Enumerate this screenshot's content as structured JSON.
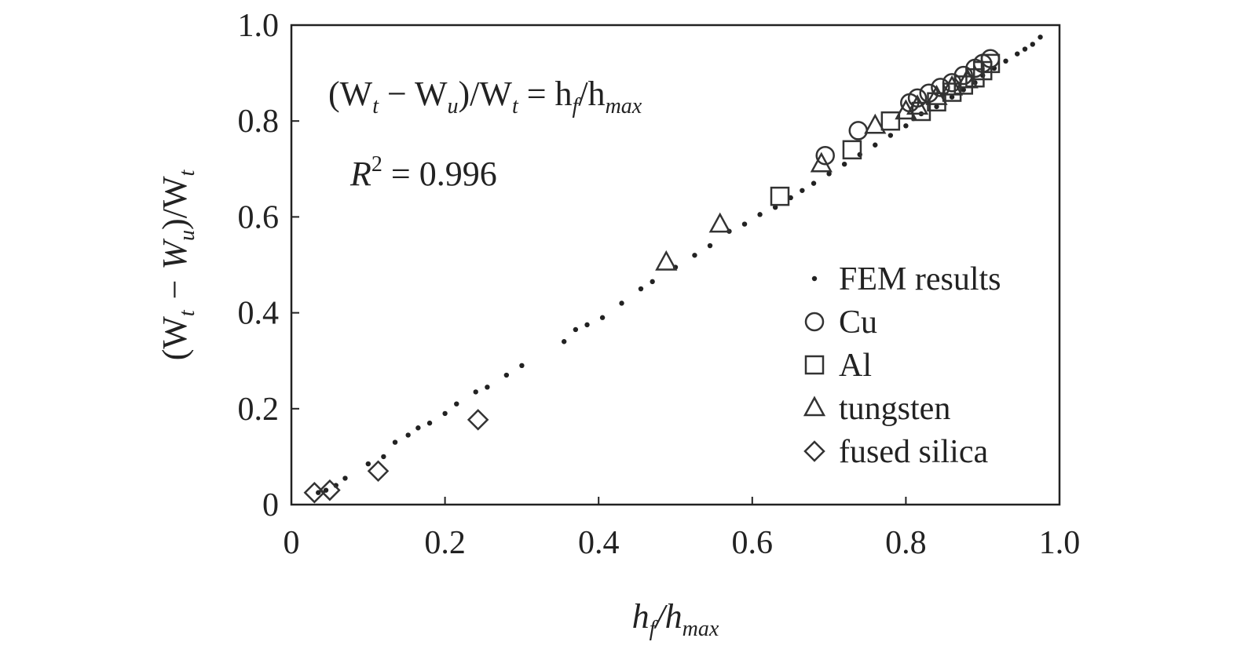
{
  "chart_data": {
    "type": "scatter",
    "xlim": [
      0,
      1.0
    ],
    "ylim": [
      0,
      1.0
    ],
    "x_ticks": [
      "0",
      "0.2",
      "0.4",
      "0.6",
      "0.8",
      "1.0"
    ],
    "y_ticks": [
      "0",
      "0.2",
      "0.4",
      "0.6",
      "0.8",
      "1.0"
    ],
    "xlabel": {
      "main": "h",
      "sub1": "f",
      "mid": "/h",
      "sub2": "max"
    },
    "ylabel": {
      "p1": "(W",
      "s1": "t",
      "p2": " − W",
      "s2": "u",
      "p3": ")/W",
      "s3": "t"
    },
    "equation": {
      "p1": "(W",
      "s1": "t",
      "p2": " − W",
      "s2": "u",
      "p3": ")/W",
      "s3": "t",
      "p4": " = h",
      "s4": "f",
      "p5": "/h",
      "s5": "max"
    },
    "r_squared": {
      "label": "R",
      "sup": "2",
      "value": " = 0.996"
    },
    "grid": false,
    "legend_position": "right",
    "series": [
      {
        "name": "FEM results",
        "marker": "dot",
        "points": [
          [
            0.035,
            0.025
          ],
          [
            0.045,
            0.03
          ],
          [
            0.058,
            0.04
          ],
          [
            0.07,
            0.055
          ],
          [
            0.1,
            0.085
          ],
          [
            0.12,
            0.1
          ],
          [
            0.135,
            0.13
          ],
          [
            0.152,
            0.145
          ],
          [
            0.165,
            0.16
          ],
          [
            0.18,
            0.17
          ],
          [
            0.2,
            0.19
          ],
          [
            0.215,
            0.21
          ],
          [
            0.24,
            0.235
          ],
          [
            0.255,
            0.245
          ],
          [
            0.28,
            0.27
          ],
          [
            0.3,
            0.29
          ],
          [
            0.355,
            0.34
          ],
          [
            0.37,
            0.365
          ],
          [
            0.385,
            0.375
          ],
          [
            0.405,
            0.39
          ],
          [
            0.43,
            0.42
          ],
          [
            0.455,
            0.45
          ],
          [
            0.47,
            0.465
          ],
          [
            0.5,
            0.495
          ],
          [
            0.525,
            0.52
          ],
          [
            0.545,
            0.54
          ],
          [
            0.57,
            0.57
          ],
          [
            0.59,
            0.585
          ],
          [
            0.61,
            0.605
          ],
          [
            0.63,
            0.62
          ],
          [
            0.65,
            0.64
          ],
          [
            0.665,
            0.655
          ],
          [
            0.68,
            0.67
          ],
          [
            0.7,
            0.69
          ],
          [
            0.72,
            0.71
          ],
          [
            0.74,
            0.73
          ],
          [
            0.76,
            0.75
          ],
          [
            0.78,
            0.77
          ],
          [
            0.8,
            0.79
          ],
          [
            0.81,
            0.805
          ],
          [
            0.82,
            0.815
          ],
          [
            0.84,
            0.83
          ],
          [
            0.86,
            0.85
          ],
          [
            0.875,
            0.865
          ],
          [
            0.89,
            0.88
          ],
          [
            0.9,
            0.895
          ],
          [
            0.915,
            0.91
          ],
          [
            0.93,
            0.925
          ],
          [
            0.945,
            0.94
          ],
          [
            0.955,
            0.95
          ],
          [
            0.965,
            0.96
          ],
          [
            0.975,
            0.975
          ]
        ]
      },
      {
        "name": "Cu",
        "marker": "circle",
        "points": [
          [
            0.695,
            0.728
          ],
          [
            0.738,
            0.78
          ],
          [
            0.805,
            0.838
          ],
          [
            0.815,
            0.848
          ],
          [
            0.83,
            0.858
          ],
          [
            0.845,
            0.87
          ],
          [
            0.86,
            0.88
          ],
          [
            0.875,
            0.895
          ],
          [
            0.89,
            0.91
          ],
          [
            0.9,
            0.92
          ],
          [
            0.91,
            0.93
          ]
        ]
      },
      {
        "name": "Al",
        "marker": "square",
        "points": [
          [
            0.636,
            0.643
          ],
          [
            0.73,
            0.74
          ],
          [
            0.78,
            0.8
          ],
          [
            0.82,
            0.82
          ],
          [
            0.84,
            0.84
          ],
          [
            0.86,
            0.86
          ],
          [
            0.875,
            0.875
          ],
          [
            0.89,
            0.89
          ],
          [
            0.9,
            0.905
          ],
          [
            0.91,
            0.92
          ]
        ]
      },
      {
        "name": "tungsten",
        "marker": "triangle",
        "points": [
          [
            0.488,
            0.505
          ],
          [
            0.558,
            0.584
          ],
          [
            0.69,
            0.71
          ],
          [
            0.76,
            0.79
          ],
          [
            0.8,
            0.82
          ],
          [
            0.815,
            0.83
          ],
          [
            0.84,
            0.85
          ],
          [
            0.86,
            0.87
          ],
          [
            0.88,
            0.885
          ]
        ]
      },
      {
        "name": "fused silica",
        "marker": "diamond",
        "points": [
          [
            0.03,
            0.025
          ],
          [
            0.05,
            0.03
          ],
          [
            0.113,
            0.07
          ],
          [
            0.243,
            0.177
          ]
        ]
      }
    ]
  }
}
